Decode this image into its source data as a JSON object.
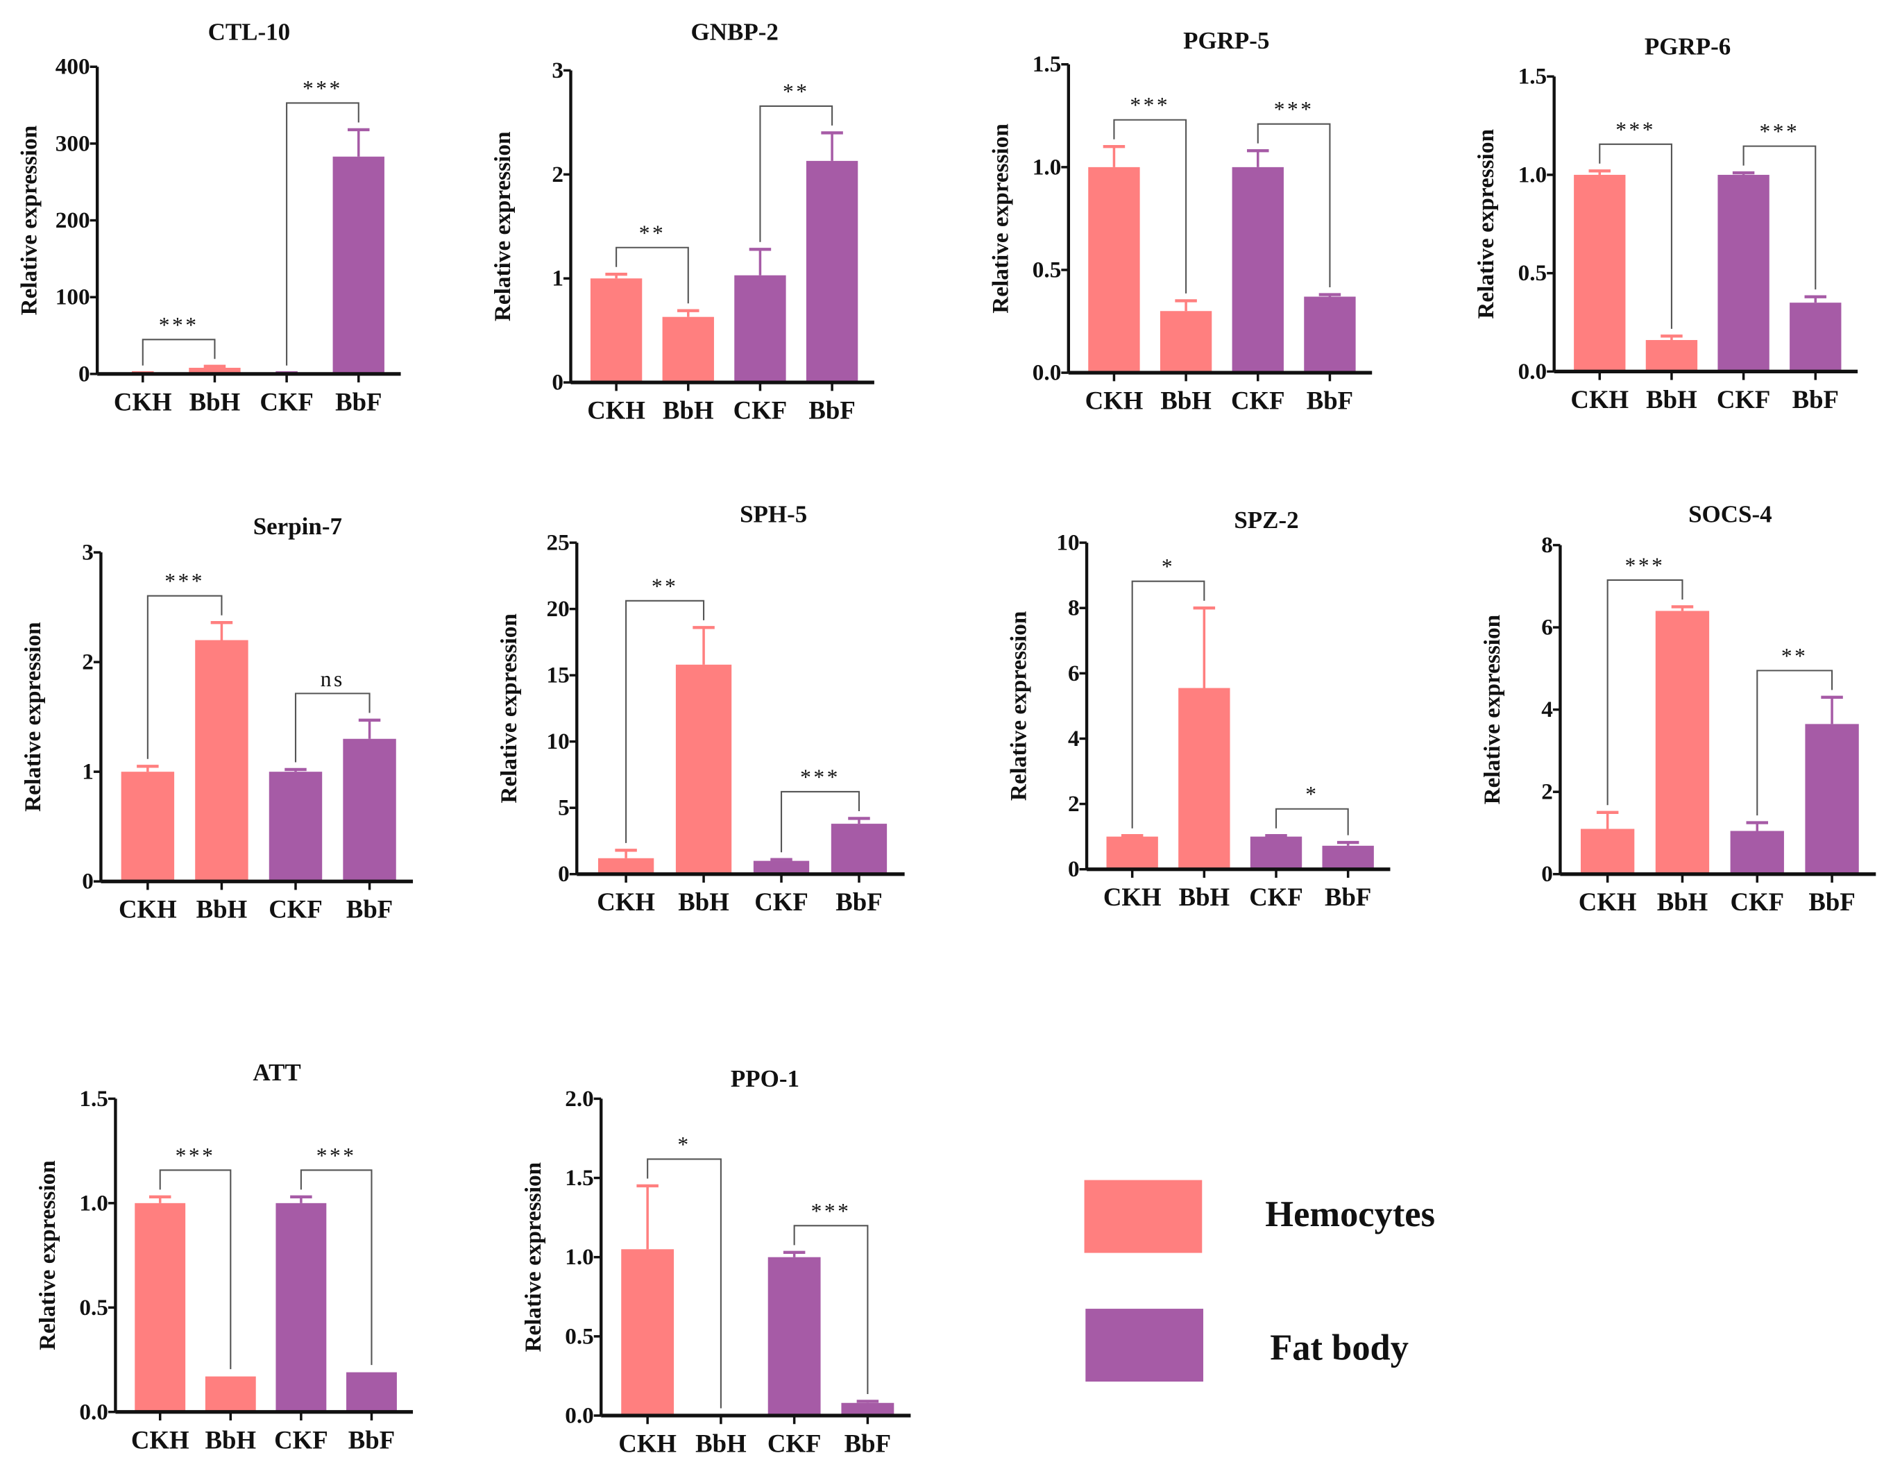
{
  "legend": [
    {
      "label": "Hemocytes",
      "color": "#ff7f7f"
    },
    {
      "label": "Fat body",
      "color": "#a65ba6"
    }
  ],
  "chart_data": [
    {
      "type": "bar",
      "title": "CTL-10",
      "ylabel": "Relative expression",
      "categories": [
        "CKH",
        "BbH",
        "CKF",
        "BbF"
      ],
      "values": [
        1,
        8,
        1,
        283
      ],
      "errors": [
        0.5,
        2,
        0.5,
        35
      ],
      "ylim": [
        0,
        400
      ],
      "yticks": [
        "0",
        "100",
        "200",
        "300",
        "400"
      ],
      "comparisons": [
        {
          "pair": [
            0,
            1
          ],
          "label": "***"
        },
        {
          "pair": [
            2,
            3
          ],
          "label": "***"
        }
      ]
    },
    {
      "type": "bar",
      "title": "GNBP-2",
      "ylabel": "Relative expression",
      "categories": [
        "CKH",
        "BbH",
        "CKF",
        "BbF"
      ],
      "values": [
        1.0,
        0.63,
        1.03,
        2.13
      ],
      "errors": [
        0.04,
        0.06,
        0.25,
        0.27
      ],
      "ylim": [
        0,
        3
      ],
      "yticks": [
        "0",
        "1",
        "2",
        "3"
      ],
      "comparisons": [
        {
          "pair": [
            0,
            1
          ],
          "label": "**"
        },
        {
          "pair": [
            2,
            3
          ],
          "label": "**"
        }
      ]
    },
    {
      "type": "bar",
      "title": "PGRP-5",
      "ylabel": "Relative expression",
      "categories": [
        "CKH",
        "BbH",
        "CKF",
        "BbF"
      ],
      "values": [
        1.0,
        0.3,
        1.0,
        0.37
      ],
      "errors": [
        0.1,
        0.05,
        0.08,
        0.01
      ],
      "ylim": [
        0,
        1.5
      ],
      "yticks": [
        "0.0",
        "0.5",
        "1.0",
        "1.5"
      ],
      "comparisons": [
        {
          "pair": [
            0,
            1
          ],
          "label": "***"
        },
        {
          "pair": [
            2,
            3
          ],
          "label": "***"
        }
      ]
    },
    {
      "type": "bar",
      "title": "PGRP-6",
      "ylabel": "Relative expression",
      "categories": [
        "CKH",
        "BbH",
        "CKF",
        "BbF"
      ],
      "values": [
        1.0,
        0.16,
        1.0,
        0.35
      ],
      "errors": [
        0.02,
        0.02,
        0.01,
        0.03
      ],
      "ylim": [
        0,
        1.5
      ],
      "yticks": [
        "0.0",
        "0.5",
        "1.0",
        "1.5"
      ],
      "comparisons": [
        {
          "pair": [
            0,
            1
          ],
          "label": "***"
        },
        {
          "pair": [
            2,
            3
          ],
          "label": "***"
        }
      ]
    },
    {
      "type": "bar",
      "title": "Serpin-7",
      "ylabel": "Relative expression",
      "categories": [
        "CKH",
        "BbH",
        "CKF",
        "BbF"
      ],
      "values": [
        1.0,
        2.2,
        1.0,
        1.3
      ],
      "errors": [
        0.05,
        0.16,
        0.02,
        0.17
      ],
      "ylim": [
        0,
        3
      ],
      "yticks": [
        "0",
        "1",
        "2",
        "3"
      ],
      "comparisons": [
        {
          "pair": [
            0,
            1
          ],
          "label": "***"
        },
        {
          "pair": [
            2,
            3
          ],
          "label": "ns"
        }
      ]
    },
    {
      "type": "bar",
      "title": "SPH-5",
      "ylabel": "Relative expression",
      "categories": [
        "CKH",
        "BbH",
        "CKF",
        "BbF"
      ],
      "values": [
        1.2,
        15.8,
        1.0,
        3.8
      ],
      "errors": [
        0.6,
        2.8,
        0.1,
        0.4
      ],
      "ylim": [
        0,
        25
      ],
      "yticks": [
        "0",
        "5",
        "10",
        "15",
        "20",
        "25"
      ],
      "comparisons": [
        {
          "pair": [
            0,
            1
          ],
          "label": "**"
        },
        {
          "pair": [
            2,
            3
          ],
          "label": "***"
        }
      ]
    },
    {
      "type": "bar",
      "title": "SPZ-2",
      "ylabel": "Relative expression",
      "categories": [
        "CKH",
        "BbH",
        "CKF",
        "BbF"
      ],
      "values": [
        1.0,
        5.55,
        1.0,
        0.72
      ],
      "errors": [
        0.03,
        2.45,
        0.03,
        0.1
      ],
      "ylim": [
        0,
        10
      ],
      "yticks": [
        "0",
        "2",
        "4",
        "6",
        "8",
        "10"
      ],
      "comparisons": [
        {
          "pair": [
            0,
            1
          ],
          "label": "*"
        },
        {
          "pair": [
            2,
            3
          ],
          "label": "*"
        }
      ]
    },
    {
      "type": "bar",
      "title": "SOCS-4",
      "ylabel": "Relative expression",
      "categories": [
        "CKH",
        "BbH",
        "CKF",
        "BbF"
      ],
      "values": [
        1.1,
        6.4,
        1.05,
        3.65
      ],
      "errors": [
        0.4,
        0.1,
        0.2,
        0.65
      ],
      "ylim": [
        0,
        8
      ],
      "yticks": [
        "0",
        "2",
        "4",
        "6",
        "8"
      ],
      "comparisons": [
        {
          "pair": [
            0,
            1
          ],
          "label": "***"
        },
        {
          "pair": [
            2,
            3
          ],
          "label": "**"
        }
      ]
    },
    {
      "type": "bar",
      "title": "ATT",
      "ylabel": "Relative expression",
      "categories": [
        "CKH",
        "BbH",
        "CKF",
        "BbF"
      ],
      "values": [
        1.0,
        0.17,
        1.0,
        0.19
      ],
      "errors": [
        0.03,
        0.0,
        0.03,
        0.0
      ],
      "ylim": [
        0,
        1.5
      ],
      "yticks": [
        "0.0",
        "0.5",
        "1.0",
        "1.5"
      ],
      "comparisons": [
        {
          "pair": [
            0,
            1
          ],
          "label": "***"
        },
        {
          "pair": [
            2,
            3
          ],
          "label": "***"
        }
      ]
    },
    {
      "type": "bar",
      "title": "PPO-1",
      "ylabel": "Relative expression",
      "categories": [
        "CKH",
        "BbH",
        "CKF",
        "BbF"
      ],
      "values": [
        1.05,
        0.0,
        1.0,
        0.08
      ],
      "errors": [
        0.4,
        0.0,
        0.03,
        0.01
      ],
      "ylim": [
        0,
        2.0
      ],
      "yticks": [
        "0.0",
        "0.5",
        "1.0",
        "1.5",
        "2.0"
      ],
      "comparisons": [
        {
          "pair": [
            0,
            1
          ],
          "label": "*"
        },
        {
          "pair": [
            2,
            3
          ],
          "label": "***"
        }
      ]
    }
  ]
}
